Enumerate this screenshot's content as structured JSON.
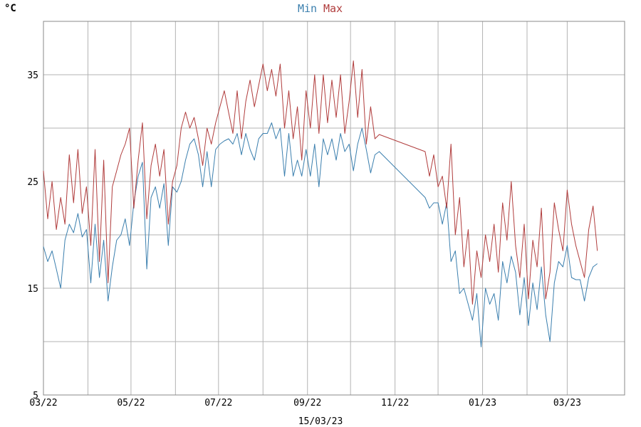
{
  "chart_data": {
    "type": "line",
    "unit_label": "°C",
    "footer": "15/03/23",
    "legend": [
      "Min",
      "Max"
    ],
    "legend_placement": "top-center",
    "grid": true,
    "ylim": [
      5,
      40
    ],
    "yticks": [
      5,
      15,
      25,
      35
    ],
    "ygrid": [
      5,
      10,
      15,
      20,
      25,
      30,
      35,
      40
    ],
    "xlim": [
      "2022-03-01",
      "2023-04-10"
    ],
    "xticks": [
      {
        "date": "2022-03-01",
        "label": "03/22"
      },
      {
        "date": "2022-05-01",
        "label": "05/22"
      },
      {
        "date": "2022-07-01",
        "label": "07/22"
      },
      {
        "date": "2022-09-01",
        "label": "09/22"
      },
      {
        "date": "2022-11-01",
        "label": "11/22"
      },
      {
        "date": "2023-01-01",
        "label": "01/23"
      },
      {
        "date": "2023-03-01",
        "label": "03/23"
      }
    ],
    "xgrid": [
      "2022-03-01",
      "2022-04-01",
      "2022-05-01",
      "2022-06-01",
      "2022-07-01",
      "2022-08-01",
      "2022-09-01",
      "2022-10-01",
      "2022-11-01",
      "2022-12-01",
      "2023-01-01",
      "2023-02-01",
      "2023-03-01",
      "2023-04-10"
    ],
    "series": [
      {
        "name": "Min",
        "color": "#3b7fae",
        "points": [
          [
            "2022-03-01",
            18.9
          ],
          [
            "2022-03-04",
            17.5
          ],
          [
            "2022-03-07",
            18.5
          ],
          [
            "2022-03-10",
            16.8
          ],
          [
            "2022-03-13",
            15.0
          ],
          [
            "2022-03-16",
            19.5
          ],
          [
            "2022-03-19",
            21.0
          ],
          [
            "2022-03-22",
            20.2
          ],
          [
            "2022-03-25",
            22.0
          ],
          [
            "2022-03-28",
            19.8
          ],
          [
            "2022-03-31",
            20.5
          ],
          [
            "2022-04-03",
            15.5
          ],
          [
            "2022-04-06",
            21.0
          ],
          [
            "2022-04-09",
            16.0
          ],
          [
            "2022-04-12",
            19.5
          ],
          [
            "2022-04-15",
            13.8
          ],
          [
            "2022-04-18",
            17.0
          ],
          [
            "2022-04-21",
            19.5
          ],
          [
            "2022-04-24",
            20.0
          ],
          [
            "2022-04-27",
            21.5
          ],
          [
            "2022-04-30",
            19.0
          ],
          [
            "2022-05-03",
            23.0
          ],
          [
            "2022-05-06",
            25.5
          ],
          [
            "2022-05-09",
            26.8
          ],
          [
            "2022-05-12",
            16.8
          ],
          [
            "2022-05-15",
            23.5
          ],
          [
            "2022-05-18",
            24.5
          ],
          [
            "2022-05-21",
            22.5
          ],
          [
            "2022-05-24",
            24.8
          ],
          [
            "2022-05-27",
            19.0
          ],
          [
            "2022-05-30",
            24.5
          ],
          [
            "2022-06-02",
            24.0
          ],
          [
            "2022-06-05",
            25.0
          ],
          [
            "2022-06-08",
            27.0
          ],
          [
            "2022-06-11",
            28.5
          ],
          [
            "2022-06-14",
            29.0
          ],
          [
            "2022-06-17",
            27.5
          ],
          [
            "2022-06-20",
            24.5
          ],
          [
            "2022-06-23",
            27.8
          ],
          [
            "2022-06-26",
            24.5
          ],
          [
            "2022-06-29",
            28.0
          ],
          [
            "2022-07-02",
            28.5
          ],
          [
            "2022-07-05",
            28.8
          ],
          [
            "2022-07-08",
            29.0
          ],
          [
            "2022-07-11",
            28.5
          ],
          [
            "2022-07-14",
            29.5
          ],
          [
            "2022-07-17",
            27.5
          ],
          [
            "2022-07-20",
            29.5
          ],
          [
            "2022-07-23",
            28.0
          ],
          [
            "2022-07-26",
            27.0
          ],
          [
            "2022-07-29",
            29.0
          ],
          [
            "2022-08-01",
            29.5
          ],
          [
            "2022-08-04",
            29.5
          ],
          [
            "2022-08-07",
            30.5
          ],
          [
            "2022-08-10",
            29.0
          ],
          [
            "2022-08-13",
            30.0
          ],
          [
            "2022-08-16",
            25.5
          ],
          [
            "2022-08-19",
            29.5
          ],
          [
            "2022-08-22",
            25.5
          ],
          [
            "2022-08-25",
            27.0
          ],
          [
            "2022-08-28",
            25.5
          ],
          [
            "2022-08-31",
            28.0
          ],
          [
            "2022-09-03",
            25.5
          ],
          [
            "2022-09-06",
            28.5
          ],
          [
            "2022-09-09",
            24.5
          ],
          [
            "2022-09-12",
            29.0
          ],
          [
            "2022-09-15",
            27.5
          ],
          [
            "2022-09-18",
            29.0
          ],
          [
            "2022-09-21",
            27.0
          ],
          [
            "2022-09-24",
            29.5
          ],
          [
            "2022-09-27",
            27.8
          ],
          [
            "2022-09-30",
            28.5
          ],
          [
            "2022-10-03",
            26.0
          ],
          [
            "2022-10-06",
            28.5
          ],
          [
            "2022-10-09",
            30.0
          ],
          [
            "2022-10-12",
            28.0
          ],
          [
            "2022-10-15",
            25.8
          ],
          [
            "2022-10-18",
            27.5
          ],
          [
            "2022-10-21",
            27.8
          ],
          [
            "2022-11-22",
            23.5
          ],
          [
            "2022-11-25",
            22.5
          ],
          [
            "2022-11-28",
            23.0
          ],
          [
            "2022-12-01",
            23.0
          ],
          [
            "2022-12-04",
            21.0
          ],
          [
            "2022-12-07",
            23.0
          ],
          [
            "2022-12-10",
            17.5
          ],
          [
            "2022-12-13",
            18.5
          ],
          [
            "2022-12-16",
            14.5
          ],
          [
            "2022-12-19",
            15.0
          ],
          [
            "2022-12-22",
            13.5
          ],
          [
            "2022-12-25",
            12.0
          ],
          [
            "2022-12-28",
            14.5
          ],
          [
            "2022-12-31",
            9.5
          ],
          [
            "2023-01-03",
            15.0
          ],
          [
            "2023-01-06",
            13.5
          ],
          [
            "2023-01-09",
            14.5
          ],
          [
            "2023-01-12",
            12.0
          ],
          [
            "2023-01-15",
            17.5
          ],
          [
            "2023-01-18",
            15.5
          ],
          [
            "2023-01-21",
            18.0
          ],
          [
            "2023-01-24",
            16.5
          ],
          [
            "2023-01-27",
            12.5
          ],
          [
            "2023-01-30",
            16.0
          ],
          [
            "2023-02-02",
            11.5
          ],
          [
            "2023-02-05",
            15.5
          ],
          [
            "2023-02-08",
            13.0
          ],
          [
            "2023-02-11",
            17.0
          ],
          [
            "2023-02-14",
            12.5
          ],
          [
            "2023-02-17",
            10.0
          ],
          [
            "2023-02-20",
            15.5
          ],
          [
            "2023-02-23",
            17.5
          ],
          [
            "2023-02-26",
            17.0
          ],
          [
            "2023-03-01",
            19.0
          ],
          [
            "2023-03-04",
            16.0
          ],
          [
            "2023-03-07",
            15.8
          ],
          [
            "2023-03-10",
            15.8
          ],
          [
            "2023-03-13",
            13.8
          ],
          [
            "2023-03-16",
            16.0
          ],
          [
            "2023-03-19",
            17.0
          ],
          [
            "2023-03-22",
            17.3
          ]
        ]
      },
      {
        "name": "Max",
        "color": "#b03c3c",
        "points": [
          [
            "2022-03-01",
            26.0
          ],
          [
            "2022-03-04",
            21.5
          ],
          [
            "2022-03-07",
            25.0
          ],
          [
            "2022-03-10",
            20.5
          ],
          [
            "2022-03-13",
            23.5
          ],
          [
            "2022-03-16",
            21.0
          ],
          [
            "2022-03-19",
            27.5
          ],
          [
            "2022-03-22",
            23.0
          ],
          [
            "2022-03-25",
            28.0
          ],
          [
            "2022-03-28",
            22.0
          ],
          [
            "2022-03-31",
            24.5
          ],
          [
            "2022-04-03",
            19.0
          ],
          [
            "2022-04-06",
            28.0
          ],
          [
            "2022-04-09",
            17.5
          ],
          [
            "2022-04-12",
            27.0
          ],
          [
            "2022-04-15",
            15.5
          ],
          [
            "2022-04-18",
            24.5
          ],
          [
            "2022-04-21",
            26.0
          ],
          [
            "2022-04-24",
            27.5
          ],
          [
            "2022-04-27",
            28.5
          ],
          [
            "2022-04-30",
            30.0
          ],
          [
            "2022-05-03",
            22.5
          ],
          [
            "2022-05-06",
            27.0
          ],
          [
            "2022-05-09",
            30.5
          ],
          [
            "2022-05-12",
            21.5
          ],
          [
            "2022-05-15",
            26.5
          ],
          [
            "2022-05-18",
            28.5
          ],
          [
            "2022-05-21",
            25.5
          ],
          [
            "2022-05-24",
            28.0
          ],
          [
            "2022-05-27",
            21.0
          ],
          [
            "2022-05-30",
            25.0
          ],
          [
            "2022-06-02",
            26.5
          ],
          [
            "2022-06-05",
            30.0
          ],
          [
            "2022-06-08",
            31.5
          ],
          [
            "2022-06-11",
            30.0
          ],
          [
            "2022-06-14",
            31.0
          ],
          [
            "2022-06-17",
            29.0
          ],
          [
            "2022-06-20",
            26.5
          ],
          [
            "2022-06-23",
            30.0
          ],
          [
            "2022-06-26",
            28.5
          ],
          [
            "2022-06-29",
            30.5
          ],
          [
            "2022-07-02",
            32.0
          ],
          [
            "2022-07-05",
            33.5
          ],
          [
            "2022-07-08",
            31.5
          ],
          [
            "2022-07-11",
            29.5
          ],
          [
            "2022-07-14",
            33.5
          ],
          [
            "2022-07-17",
            29.0
          ],
          [
            "2022-07-20",
            32.5
          ],
          [
            "2022-07-23",
            34.5
          ],
          [
            "2022-07-26",
            32.0
          ],
          [
            "2022-07-29",
            34.0
          ],
          [
            "2022-08-01",
            36.0
          ],
          [
            "2022-08-04",
            33.5
          ],
          [
            "2022-08-07",
            35.5
          ],
          [
            "2022-08-10",
            33.0
          ],
          [
            "2022-08-13",
            36.0
          ],
          [
            "2022-08-16",
            30.0
          ],
          [
            "2022-08-19",
            33.5
          ],
          [
            "2022-08-22",
            29.0
          ],
          [
            "2022-08-25",
            32.0
          ],
          [
            "2022-08-28",
            27.0
          ],
          [
            "2022-08-31",
            33.5
          ],
          [
            "2022-09-03",
            30.0
          ],
          [
            "2022-09-06",
            35.0
          ],
          [
            "2022-09-09",
            29.5
          ],
          [
            "2022-09-12",
            35.0
          ],
          [
            "2022-09-15",
            30.5
          ],
          [
            "2022-09-18",
            34.5
          ],
          [
            "2022-09-21",
            31.0
          ],
          [
            "2022-09-24",
            35.0
          ],
          [
            "2022-09-27",
            29.5
          ],
          [
            "2022-09-30",
            32.5
          ],
          [
            "2022-10-03",
            36.3
          ],
          [
            "2022-10-06",
            31.0
          ],
          [
            "2022-10-09",
            35.5
          ],
          [
            "2022-10-12",
            28.5
          ],
          [
            "2022-10-15",
            32.0
          ],
          [
            "2022-10-18",
            29.0
          ],
          [
            "2022-10-21",
            29.4
          ],
          [
            "2022-11-22",
            27.8
          ],
          [
            "2022-11-25",
            25.5
          ],
          [
            "2022-11-28",
            27.5
          ],
          [
            "2022-12-01",
            24.5
          ],
          [
            "2022-12-04",
            25.5
          ],
          [
            "2022-12-07",
            22.5
          ],
          [
            "2022-12-10",
            28.5
          ],
          [
            "2022-12-13",
            20.0
          ],
          [
            "2022-12-16",
            23.5
          ],
          [
            "2022-12-19",
            17.0
          ],
          [
            "2022-12-22",
            20.5
          ],
          [
            "2022-12-25",
            13.5
          ],
          [
            "2022-12-28",
            18.5
          ],
          [
            "2022-12-31",
            16.0
          ],
          [
            "2023-01-03",
            20.0
          ],
          [
            "2023-01-06",
            17.5
          ],
          [
            "2023-01-09",
            21.0
          ],
          [
            "2023-01-12",
            16.5
          ],
          [
            "2023-01-15",
            23.0
          ],
          [
            "2023-01-18",
            19.5
          ],
          [
            "2023-01-21",
            25.0
          ],
          [
            "2023-01-24",
            19.0
          ],
          [
            "2023-01-27",
            16.0
          ],
          [
            "2023-01-30",
            21.0
          ],
          [
            "2023-02-02",
            14.0
          ],
          [
            "2023-02-05",
            19.5
          ],
          [
            "2023-02-08",
            17.0
          ],
          [
            "2023-02-11",
            22.5
          ],
          [
            "2023-02-14",
            14.0
          ],
          [
            "2023-02-17",
            16.5
          ],
          [
            "2023-02-20",
            23.0
          ],
          [
            "2023-02-23",
            20.5
          ],
          [
            "2023-02-26",
            18.5
          ],
          [
            "2023-03-01",
            24.2
          ],
          [
            "2023-03-04",
            21.0
          ],
          [
            "2023-03-07",
            19.0
          ],
          [
            "2023-03-10",
            17.5
          ],
          [
            "2023-03-13",
            16.0
          ],
          [
            "2023-03-16",
            20.5
          ],
          [
            "2023-03-19",
            22.7
          ],
          [
            "2023-03-22",
            18.5
          ]
        ]
      }
    ]
  }
}
